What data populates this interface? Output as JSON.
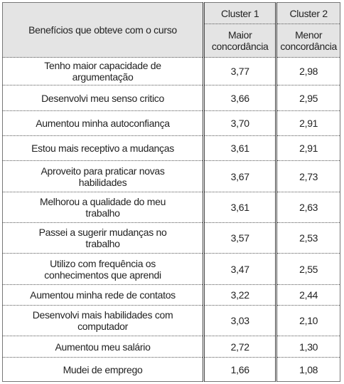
{
  "table": {
    "header": {
      "first": "Benefícios que obteve com o curso",
      "columns": [
        {
          "name": "Cluster 1",
          "sub": "Maior concordância"
        },
        {
          "name": "Cluster 2",
          "sub": "Menor concordância"
        }
      ]
    },
    "rows": [
      [
        "Tenho maior capacidade de argumentação",
        "3,77",
        "2,98"
      ],
      [
        "Desenvolvi meu senso critico",
        "3,66",
        "2,95"
      ],
      [
        "Aumentou minha autoconfiança",
        "3,70",
        "2,91"
      ],
      [
        "Estou mais receptivo a mudanças",
        "3,61",
        "2,91"
      ],
      [
        "Aproveito para praticar novas habilidades",
        "3,67",
        "2,73"
      ],
      [
        "Melhorou a qualidade do meu trabalho",
        "3,61",
        "2,63"
      ],
      [
        "Passei a sugerir mudanças no trabalho",
        "3,57",
        "2,53"
      ],
      [
        "Utilizo com frequência os conhecimentos que aprendi",
        "3,47",
        "2,55"
      ],
      [
        "Aumentou minha rede de contatos",
        "3,22",
        "2,44"
      ],
      [
        "Desenvolvi mais habilidades com computador",
        "3,03",
        "2,10"
      ],
      [
        "Aumentou meu salário",
        "2,72",
        "1,30"
      ],
      [
        "Mudei de emprego",
        "1,66",
        "1,08"
      ]
    ]
  }
}
